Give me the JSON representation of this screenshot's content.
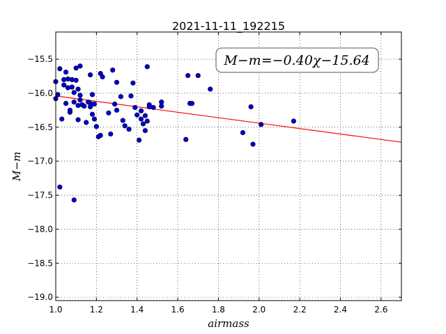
{
  "chart_data": {
    "type": "scatter",
    "title": "2021-11-11_192215",
    "xlabel": "airmass",
    "ylabel": "M−m",
    "xlim": [
      1.0,
      2.7
    ],
    "ylim": [
      -19.05,
      -15.1
    ],
    "x_ticks": [
      1.0,
      1.2,
      1.4,
      1.6,
      1.8,
      2.0,
      2.2,
      2.4,
      2.6
    ],
    "x_tick_labels": [
      "1.0",
      "1.2",
      "1.4",
      "1.6",
      "1.8",
      "2.0",
      "2.2",
      "2.4",
      "2.6"
    ],
    "y_ticks": [
      -15.5,
      -16.0,
      -16.5,
      -17.0,
      -17.5,
      -18.0,
      -18.5,
      -19.0
    ],
    "y_tick_labels": [
      "−15.5",
      "−16.0",
      "−16.5",
      "−17.0",
      "−17.5",
      "−18.0",
      "−18.5",
      "−19.0"
    ],
    "grid": true,
    "annotation": "M−m=−0.40χ−15.64",
    "fit": {
      "slope": -0.4,
      "intercept": -15.64,
      "color": "#ff0000"
    },
    "point_color": "#0000cc",
    "points": [
      [
        1.0,
        -15.83
      ],
      [
        1.0,
        -16.08
      ],
      [
        1.01,
        -16.02
      ],
      [
        1.02,
        -15.64
      ],
      [
        1.02,
        -17.38
      ],
      [
        1.03,
        -16.38
      ],
      [
        1.04,
        -15.8
      ],
      [
        1.04,
        -15.88
      ],
      [
        1.05,
        -15.69
      ],
      [
        1.05,
        -16.15
      ],
      [
        1.06,
        -15.79
      ],
      [
        1.06,
        -15.92
      ],
      [
        1.07,
        -16.28
      ],
      [
        1.07,
        -16.25
      ],
      [
        1.08,
        -15.8
      ],
      [
        1.08,
        -15.91
      ],
      [
        1.09,
        -15.99
      ],
      [
        1.09,
        -16.13
      ],
      [
        1.09,
        -17.57
      ],
      [
        1.1,
        -15.63
      ],
      [
        1.1,
        -15.81
      ],
      [
        1.11,
        -15.94
      ],
      [
        1.11,
        -16.18
      ],
      [
        1.11,
        -16.39
      ],
      [
        1.12,
        -15.6
      ],
      [
        1.12,
        -16.03
      ],
      [
        1.12,
        -16.1
      ],
      [
        1.13,
        -16.17
      ],
      [
        1.14,
        -16.19
      ],
      [
        1.15,
        -16.43
      ],
      [
        1.16,
        -16.13
      ],
      [
        1.17,
        -15.73
      ],
      [
        1.17,
        -16.2
      ],
      [
        1.17,
        -16.15
      ],
      [
        1.18,
        -16.02
      ],
      [
        1.18,
        -16.31
      ],
      [
        1.19,
        -16.16
      ],
      [
        1.19,
        -16.38
      ],
      [
        1.2,
        -16.49
      ],
      [
        1.21,
        -16.64
      ],
      [
        1.22,
        -16.62
      ],
      [
        1.22,
        -15.71
      ],
      [
        1.23,
        -15.76
      ],
      [
        1.26,
        -16.29
      ],
      [
        1.27,
        -16.6
      ],
      [
        1.28,
        -15.66
      ],
      [
        1.29,
        -16.16
      ],
      [
        1.3,
        -16.25
      ],
      [
        1.3,
        -15.84
      ],
      [
        1.32,
        -16.05
      ],
      [
        1.33,
        -16.4
      ],
      [
        1.34,
        -16.48
      ],
      [
        1.36,
        -16.53
      ],
      [
        1.37,
        -16.04
      ],
      [
        1.38,
        -15.85
      ],
      [
        1.39,
        -16.21
      ],
      [
        1.4,
        -16.32
      ],
      [
        1.41,
        -16.69
      ],
      [
        1.42,
        -16.26
      ],
      [
        1.42,
        -16.38
      ],
      [
        1.43,
        -16.45
      ],
      [
        1.44,
        -16.33
      ],
      [
        1.44,
        -16.55
      ],
      [
        1.45,
        -16.41
      ],
      [
        1.45,
        -15.61
      ],
      [
        1.46,
        -16.17
      ],
      [
        1.46,
        -16.2
      ],
      [
        1.48,
        -16.21
      ],
      [
        1.52,
        -16.13
      ],
      [
        1.52,
        -16.19
      ],
      [
        1.64,
        -16.68
      ],
      [
        1.65,
        -15.74
      ],
      [
        1.66,
        -16.15
      ],
      [
        1.67,
        -16.15
      ],
      [
        1.7,
        -15.74
      ],
      [
        1.76,
        -15.94
      ],
      [
        1.92,
        -16.58
      ],
      [
        1.96,
        -16.2
      ],
      [
        1.97,
        -16.75
      ],
      [
        2.01,
        -16.46
      ],
      [
        2.17,
        -16.41
      ]
    ]
  }
}
